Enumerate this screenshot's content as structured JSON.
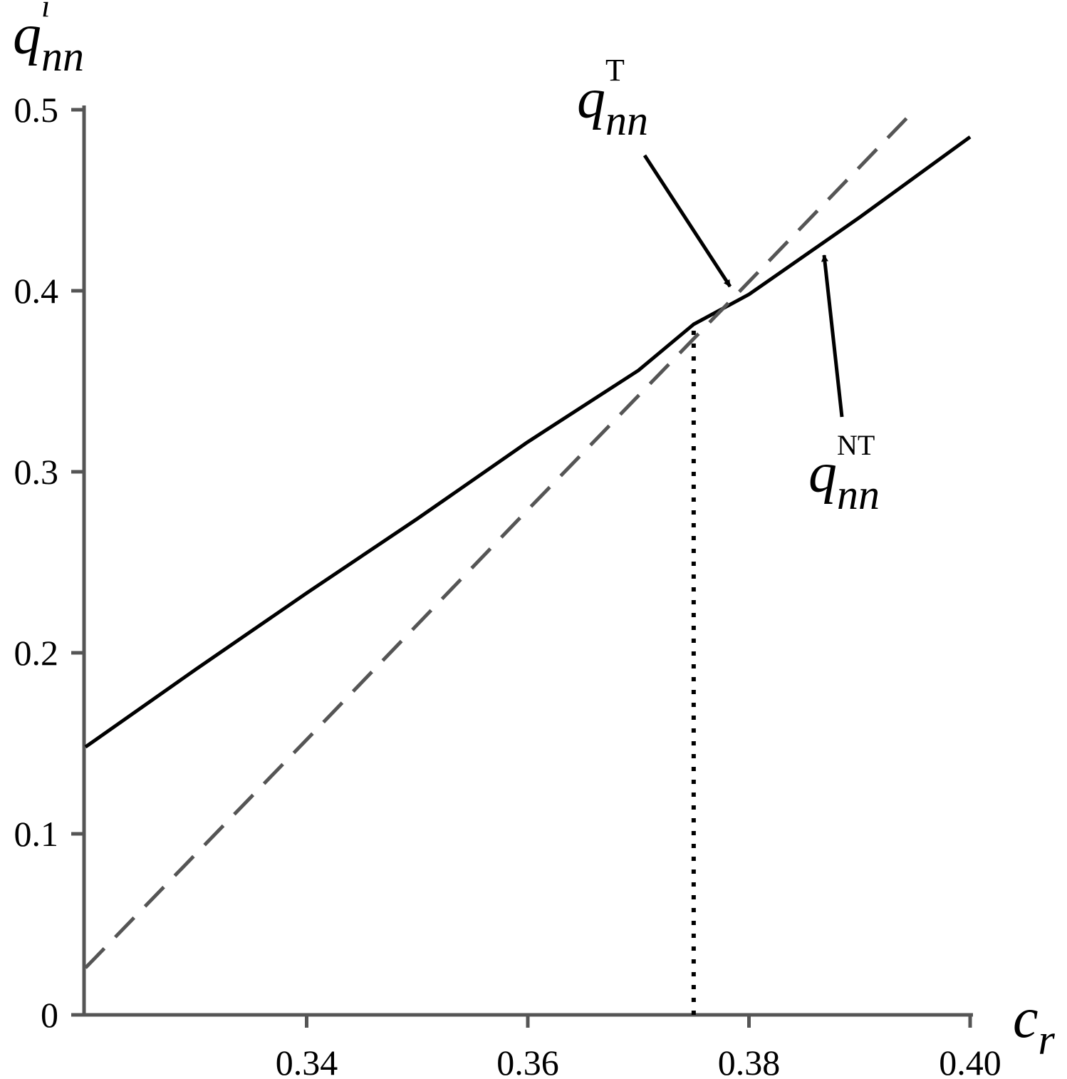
{
  "chart_data": {
    "type": "line",
    "y_label": {
      "base": "q",
      "sub": "nn",
      "sup": "i"
    },
    "x_label": {
      "base": "c",
      "sub": "r"
    },
    "xlim": [
      0.32,
      0.4
    ],
    "xticks": [
      0.34,
      0.36,
      0.38,
      {
        "value": 0.4,
        "label": "0.40"
      }
    ],
    "ylim": [
      0,
      0.5
    ],
    "yticks": [
      0,
      0.1,
      0.2,
      0.3,
      0.4,
      0.5
    ],
    "series": [
      {
        "name": "NT",
        "color": "#000000",
        "line_style": "solid",
        "x": [
          0.32,
          0.33,
          0.34,
          0.35,
          0.36,
          0.37,
          0.375,
          0.38,
          0.39,
          0.4
        ],
        "values": [
          0.148,
          0.191,
          0.233,
          0.274,
          0.3165,
          0.356,
          0.3815,
          0.398,
          0.4405,
          0.485
        ]
      },
      {
        "name": "T",
        "color": "#555555",
        "line_style": "dashed",
        "x": [
          0.32,
          0.34,
          0.36,
          0.38,
          0.395
        ],
        "values": [
          0.026,
          0.152,
          0.279,
          0.405,
          0.5
        ]
      }
    ],
    "annotations": [
      {
        "base": "q",
        "sub": "nn",
        "sup": "T"
      },
      {
        "base": "q",
        "sub": "nn",
        "sup": "NT"
      }
    ],
    "vline": {
      "x": 0.375,
      "ymax": 0.38
    }
  }
}
